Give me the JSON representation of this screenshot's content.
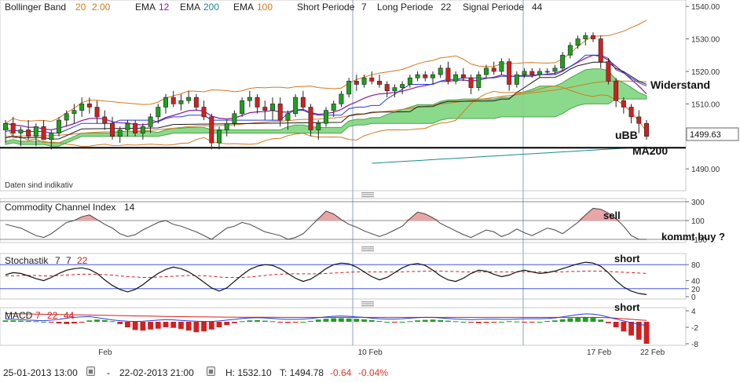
{
  "colors": {
    "bollinger": "#d37a1e",
    "ema12": "#8a1a9a",
    "ema200": "#188c8c",
    "ema100": "#d37a1e",
    "kijun": "#1a1a1a",
    "tenkan": "#2a3bd6",
    "cloud_fill": "#7fd67f",
    "cloud_edge": "#3a9a3a",
    "candle_up": "#1ea01e",
    "candle_down": "#d02020",
    "cci_pos": "#e8a6a6",
    "cci_neg": "#7fd67f",
    "macd_pos": "#1ea01e",
    "macd_neg": "#d02020",
    "signal_line": "#d02020",
    "macd_line": "#2a3bd6"
  },
  "legend": {
    "bb_label": "Bollinger Band",
    "bb_p1": "20",
    "bb_p2": "2.00",
    "ema12_label": "EMA",
    "ema12_val": "12",
    "ema200_label": "EMA",
    "ema200_val": "200",
    "ema100_label": "EMA",
    "ema100_val": "100",
    "short_label": "Short Periode",
    "short_val": "7",
    "long_label": "Long Periode",
    "long_val": "22",
    "signal_label": "Signal Periode",
    "signal_val": "44"
  },
  "annotations": {
    "widerstand": "Widerstand",
    "ubb": "uBB",
    "ma200": "MA200",
    "daten": "Daten sind indikativ",
    "sell": "sell",
    "kommt_buy": "kommt buy ?",
    "short_stoch": "short",
    "short_macd": "short",
    "price_box": "1499.63"
  },
  "panels": {
    "cci_title": "Commodity Channel Index",
    "cci_param": "14",
    "stoch_title": "Stochastik",
    "stoch_p1": "7",
    "stoch_p2": "7",
    "stoch_p3": "22",
    "macd_title": "MACD",
    "macd_p1": "7",
    "macd_p2": "22",
    "macd_p3": "44"
  },
  "footer": {
    "start": "25-01-2013 13:00",
    "dash": "-",
    "end": "22-02-2013 21:00",
    "high_label": "H: 1532.10",
    "low_label": "T: 1494.78",
    "change": "-0.64",
    "change_pct": "-0.04%"
  },
  "chart_data": [
    {
      "type": "candlestick",
      "name": "price",
      "ylim": [
        1484,
        1541
      ],
      "y_ticks": [
        "1540.00",
        "1530.00",
        "1520.00",
        "1510.00",
        "1490.00"
      ],
      "x_labels": [
        "Feb",
        "10 Feb",
        "17 Feb",
        "22 Feb"
      ],
      "horizontal_line": 1496.5,
      "candles": [
        [
          1502,
          1505,
          1498,
          1504
        ],
        [
          1504,
          1506,
          1500,
          1501
        ],
        [
          1501,
          1503,
          1497,
          1502
        ],
        [
          1502,
          1505,
          1499,
          1500
        ],
        [
          1500,
          1504,
          1497,
          1503
        ],
        [
          1503,
          1505,
          1499,
          1499
        ],
        [
          1499,
          1502,
          1496,
          1501
        ],
        [
          1501,
          1506,
          1500,
          1505
        ],
        [
          1505,
          1508,
          1503,
          1507
        ],
        [
          1507,
          1510,
          1504,
          1508
        ],
        [
          1508,
          1512,
          1506,
          1510
        ],
        [
          1510,
          1512,
          1507,
          1509
        ],
        [
          1509,
          1511,
          1504,
          1506
        ],
        [
          1506,
          1508,
          1502,
          1504
        ],
        [
          1504,
          1506,
          1499,
          1500
        ],
        [
          1500,
          1503,
          1498,
          1502
        ],
        [
          1502,
          1505,
          1500,
          1504
        ],
        [
          1504,
          1505,
          1500,
          1501
        ],
        [
          1501,
          1504,
          1499,
          1503
        ],
        [
          1503,
          1507,
          1501,
          1506
        ],
        [
          1506,
          1510,
          1504,
          1509
        ],
        [
          1509,
          1513,
          1507,
          1512
        ],
        [
          1512,
          1514,
          1509,
          1510
        ],
        [
          1510,
          1513,
          1508,
          1511
        ],
        [
          1511,
          1514,
          1510,
          1512
        ],
        [
          1512,
          1513,
          1508,
          1509
        ],
        [
          1509,
          1511,
          1505,
          1506
        ],
        [
          1506,
          1507,
          1496,
          1498
        ],
        [
          1498,
          1503,
          1496,
          1502
        ],
        [
          1502,
          1505,
          1500,
          1504
        ],
        [
          1504,
          1508,
          1503,
          1507
        ],
        [
          1507,
          1512,
          1506,
          1511
        ],
        [
          1511,
          1514,
          1509,
          1512
        ],
        [
          1512,
          1513,
          1507,
          1509
        ],
        [
          1509,
          1511,
          1505,
          1508
        ],
        [
          1508,
          1512,
          1505,
          1510
        ],
        [
          1510,
          1512,
          1503,
          1505
        ],
        [
          1505,
          1508,
          1502,
          1507
        ],
        [
          1507,
          1513,
          1506,
          1512
        ],
        [
          1512,
          1514,
          1508,
          1509
        ],
        [
          1509,
          1510,
          1500,
          1502
        ],
        [
          1502,
          1505,
          1499,
          1504
        ],
        [
          1504,
          1509,
          1503,
          1508
        ],
        [
          1508,
          1511,
          1506,
          1510
        ],
        [
          1510,
          1514,
          1509,
          1513
        ],
        [
          1513,
          1518,
          1512,
          1517
        ],
        [
          1517,
          1519,
          1514,
          1516
        ],
        [
          1516,
          1519,
          1515,
          1518
        ],
        [
          1518,
          1520,
          1516,
          1517
        ],
        [
          1517,
          1519,
          1515,
          1516
        ],
        [
          1516,
          1517,
          1512,
          1514
        ],
        [
          1514,
          1516,
          1512,
          1515
        ],
        [
          1515,
          1517,
          1513,
          1516
        ],
        [
          1516,
          1519,
          1515,
          1518
        ],
        [
          1518,
          1520,
          1517,
          1519
        ],
        [
          1519,
          1520,
          1517,
          1518
        ],
        [
          1518,
          1520,
          1516,
          1519
        ],
        [
          1519,
          1522,
          1518,
          1521
        ],
        [
          1521,
          1523,
          1516,
          1517
        ],
        [
          1517,
          1520,
          1516,
          1519
        ],
        [
          1519,
          1521,
          1517,
          1518
        ],
        [
          1518,
          1519,
          1513,
          1515
        ],
        [
          1515,
          1520,
          1514,
          1519
        ],
        [
          1519,
          1522,
          1518,
          1521
        ],
        [
          1521,
          1523,
          1519,
          1520
        ],
        [
          1520,
          1524,
          1519,
          1523
        ],
        [
          1523,
          1524,
          1514,
          1516
        ],
        [
          1516,
          1520,
          1515,
          1519
        ],
        [
          1519,
          1521,
          1518,
          1520
        ],
        [
          1520,
          1521,
          1518,
          1519
        ],
        [
          1519,
          1521,
          1518,
          1520
        ],
        [
          1520,
          1521,
          1519,
          1520
        ],
        [
          1520,
          1522,
          1519,
          1521
        ],
        [
          1521,
          1526,
          1520,
          1525
        ],
        [
          1525,
          1529,
          1524,
          1528
        ],
        [
          1528,
          1531,
          1527,
          1530
        ],
        [
          1530,
          1532,
          1528,
          1531
        ],
        [
          1531,
          1532,
          1529,
          1530
        ],
        [
          1530,
          1531,
          1521,
          1523
        ],
        [
          1523,
          1524,
          1516,
          1517
        ],
        [
          1517,
          1518,
          1509,
          1511
        ],
        [
          1511,
          1512,
          1507,
          1509
        ],
        [
          1509,
          1510,
          1504,
          1506
        ],
        [
          1506,
          1508,
          1501,
          1504
        ],
        [
          1504,
          1505,
          1499,
          1500
        ]
      ]
    },
    {
      "type": "line",
      "name": "cci",
      "ylim": [
        -100,
        300
      ],
      "y_ticks": [
        "300",
        "100",
        "-100"
      ],
      "values": [
        60,
        40,
        20,
        -20,
        -60,
        -80,
        -40,
        20,
        80,
        100,
        140,
        160,
        110,
        60,
        20,
        -40,
        -70,
        -50,
        0,
        40,
        80,
        100,
        60,
        40,
        10,
        -20,
        -60,
        -100,
        -40,
        20,
        40,
        80,
        60,
        20,
        -20,
        -40,
        -60,
        -100,
        -80,
        -40,
        40,
        120,
        200,
        170,
        110,
        60,
        30,
        -10,
        -40,
        -70,
        -40,
        0,
        40,
        120,
        190,
        170,
        130,
        70,
        30,
        -10,
        -50,
        -80,
        -40,
        0,
        -20,
        -70,
        -40,
        10,
        -30,
        -60,
        -20,
        20,
        0,
        -40,
        20,
        80,
        160,
        230,
        220,
        180,
        120,
        40,
        -60,
        -100,
        -100
      ]
    },
    {
      "type": "line",
      "name": "stochastic",
      "ylim": [
        0,
        100
      ],
      "y_ticks": [
        "80",
        "40",
        "20",
        "0"
      ],
      "values": [
        55,
        60,
        58,
        52,
        45,
        40,
        48,
        58,
        66,
        70,
        72,
        68,
        58,
        42,
        28,
        18,
        12,
        18,
        30,
        45,
        58,
        68,
        74,
        70,
        62,
        50,
        36,
        22,
        14,
        22,
        38,
        54,
        68,
        76,
        80,
        78,
        70,
        58,
        46,
        38,
        44,
        56,
        70,
        80,
        84,
        82,
        74,
        62,
        50,
        42,
        48,
        60,
        72,
        80,
        83,
        78,
        66,
        52,
        42,
        38,
        46,
        58,
        66,
        64,
        56,
        50,
        54,
        62,
        66,
        62,
        58,
        60,
        64,
        70,
        76,
        82,
        86,
        84,
        76,
        60,
        40,
        24,
        14,
        8,
        5
      ],
      "signal_values": [
        52,
        52,
        53,
        53,
        53,
        52,
        52,
        53,
        54,
        55,
        56,
        56,
        56,
        55,
        54,
        52,
        50,
        49,
        48,
        48,
        49,
        50,
        51,
        52,
        53,
        53,
        52,
        51,
        49,
        48,
        48,
        48,
        49,
        51,
        53,
        55,
        56,
        57,
        57,
        57,
        57,
        57,
        58,
        59,
        60,
        61,
        62,
        62,
        62,
        62,
        62,
        62,
        62,
        63,
        63,
        64,
        64,
        64,
        63,
        63,
        62,
        62,
        62,
        62,
        62,
        62,
        62,
        62,
        62,
        62,
        62,
        62,
        62,
        62,
        63,
        63,
        64,
        64,
        64,
        63,
        62,
        61,
        60,
        59,
        58
      ]
    },
    {
      "type": "bar",
      "name": "macd",
      "ylim": [
        -8,
        4
      ],
      "y_ticks": [
        "4",
        "-2",
        "-8"
      ],
      "values": [
        0.5,
        0.5,
        0.4,
        0.3,
        0.2,
        0,
        -0.3,
        -0.6,
        -0.8,
        -0.6,
        -0.2,
        0.5,
        0.8,
        0.6,
        0.2,
        -0.8,
        -2,
        -3,
        -3.2,
        -2.8,
        -2.5,
        -2,
        -2.2,
        -2.6,
        -3.2,
        -3.8,
        -3.5,
        -2.8,
        -2,
        -1.2,
        -0.5,
        0.2,
        0.5,
        0.6,
        0.4,
        0.2,
        -0.2,
        -0.4,
        -0.3,
        0,
        0.3,
        0.8,
        1.1,
        1.3,
        1.3,
        1.2,
        1.1,
        0.9,
        0.6,
        0.3,
        0,
        -0.2,
        0,
        0.2,
        0.5,
        0.7,
        0.8,
        0.6,
        0.4,
        0.2,
        0,
        -0.3,
        -0.5,
        -0.4,
        -0.2,
        0,
        0.2,
        0.1,
        -0.1,
        -0.2,
        0,
        0.3,
        0.5,
        0.9,
        1.3,
        1.5,
        1.6,
        1.5,
        0.8,
        -0.5,
        -2,
        -3.5,
        -5,
        -6.5,
        -8
      ],
      "macd_line": [
        1,
        0.9,
        0.8,
        0.6,
        0.5,
        0.4,
        0.6,
        0.9,
        1.3,
        1.6,
        1.8,
        1.9,
        1.5,
        1.1,
        0.7,
        0.4,
        0.2,
        0.1,
        0.2,
        0.4,
        0.6,
        0.8,
        0.7,
        0.5,
        0.3,
        0.2,
        0.1,
        0.1,
        0.3,
        0.6,
        0.9,
        1.2,
        1.4,
        1.5,
        1.4,
        1.2,
        1,
        0.9,
        0.9,
        1,
        1.2,
        1.5,
        1.8,
        2,
        2.1,
        2,
        1.8,
        1.6,
        1.3,
        1.1,
        1,
        1,
        1.1,
        1.3,
        1.5,
        1.6,
        1.6,
        1.4,
        1.2,
        1,
        0.9,
        0.8,
        0.9,
        1,
        1,
        0.9,
        0.9,
        1,
        1.1,
        1.1,
        1.1,
        1.2,
        1.4,
        1.8,
        2.2,
        2.6,
        2.9,
        2.8,
        2.4,
        1.7,
        1,
        0.3,
        -0.3,
        -0.9,
        -1.4
      ],
      "signal_line": [
        3,
        2.95,
        2.9,
        2.85,
        2.8,
        2.75,
        2.7,
        2.65,
        2.6,
        2.55,
        2.5,
        2.45,
        2.4,
        2.35,
        2.3,
        2.25,
        2.2,
        2.15,
        2.1,
        2.05,
        2,
        1.95,
        1.9,
        1.87,
        1.84,
        1.81,
        1.78,
        1.75,
        1.72,
        1.7,
        1.68,
        1.66,
        1.65,
        1.64,
        1.63,
        1.62,
        1.61,
        1.6,
        1.6,
        1.6,
        1.6,
        1.6,
        1.6,
        1.6,
        1.6,
        1.6,
        1.6,
        1.6,
        1.6,
        1.6,
        1.6,
        1.6,
        1.6,
        1.6,
        1.6,
        1.6,
        1.6,
        1.6,
        1.6,
        1.6,
        1.6,
        1.6,
        1.6,
        1.6,
        1.6,
        1.6,
        1.6,
        1.6,
        1.6,
        1.6,
        1.6,
        1.6,
        1.6,
        1.6,
        1.6,
        1.6,
        1.6,
        1.6,
        1.55,
        1.45,
        1.3,
        1.1,
        0.9,
        0.7,
        0.5
      ]
    }
  ]
}
